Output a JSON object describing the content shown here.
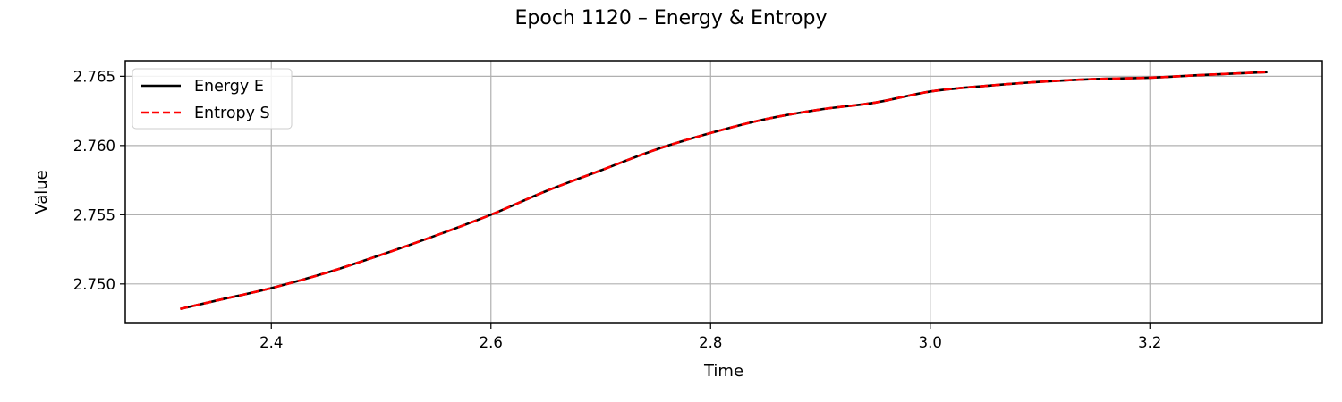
{
  "chart_data": {
    "type": "line",
    "title": "Epoch 1120 – Energy & Entropy",
    "xlabel": "Time",
    "ylabel": "Value",
    "xlim": [
      2.267,
      3.357
    ],
    "ylim": [
      2.74715,
      2.76612
    ],
    "xticks": [
      2.4,
      2.6,
      2.8,
      3.0,
      3.2
    ],
    "xtick_labels": [
      "2.4",
      "2.6",
      "2.8",
      "3.0",
      "3.2"
    ],
    "yticks": [
      2.75,
      2.755,
      2.76,
      2.765
    ],
    "ytick_labels": [
      "2.750",
      "2.755",
      "2.760",
      "2.765"
    ],
    "grid": true,
    "legend_position": "upper-left",
    "series": [
      {
        "name": "Energy E",
        "color": "#000000",
        "style": "solid",
        "x": [
          2.317,
          2.35,
          2.4,
          2.45,
          2.5,
          2.55,
          2.6,
          2.65,
          2.7,
          2.75,
          2.8,
          2.85,
          2.9,
          2.95,
          3.0,
          3.05,
          3.1,
          3.15,
          3.2,
          3.25,
          3.307
        ],
        "y": [
          2.7482,
          2.7488,
          2.7497,
          2.7508,
          2.7521,
          2.7535,
          2.755,
          2.7567,
          2.7582,
          2.7597,
          2.7609,
          2.7619,
          2.7626,
          2.7631,
          2.7639,
          2.7643,
          2.7646,
          2.7648,
          2.7649,
          2.7651,
          2.7653
        ]
      },
      {
        "name": "Entropy S",
        "color": "#ff0000",
        "style": "dashed",
        "x": [
          2.317,
          2.35,
          2.4,
          2.45,
          2.5,
          2.55,
          2.6,
          2.65,
          2.7,
          2.75,
          2.8,
          2.85,
          2.9,
          2.95,
          3.0,
          3.05,
          3.1,
          3.15,
          3.2,
          3.25,
          3.307
        ],
        "y": [
          2.7482,
          2.7488,
          2.7497,
          2.7508,
          2.7521,
          2.7535,
          2.755,
          2.7567,
          2.7582,
          2.7597,
          2.7609,
          2.7619,
          2.7626,
          2.7631,
          2.7639,
          2.7643,
          2.7646,
          2.7648,
          2.7649,
          2.7651,
          2.7653
        ]
      }
    ]
  }
}
